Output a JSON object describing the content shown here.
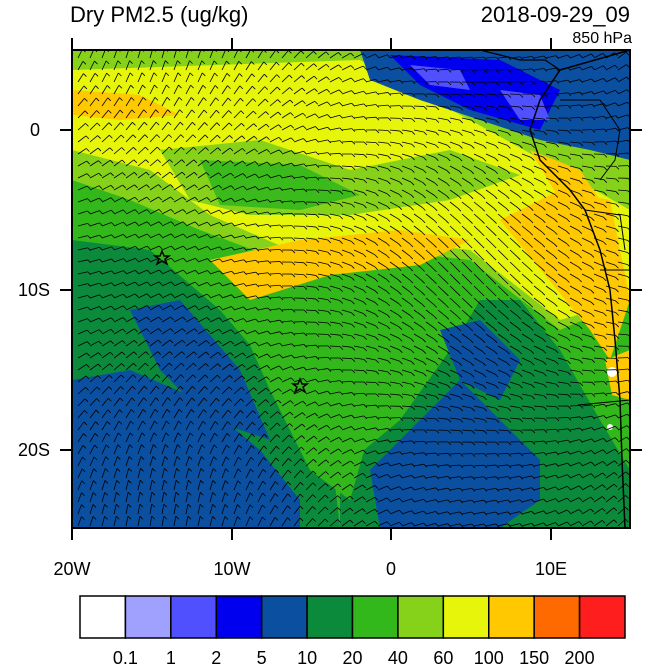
{
  "header": {
    "title": "Dry PM2.5 (ug/kg)",
    "datetime": "2018-09-29_09",
    "level": "850 hPa"
  },
  "axes": {
    "lon_labels": [
      "20W",
      "10W",
      "0",
      "10E"
    ],
    "lat_labels": [
      "0",
      "10S",
      "20S"
    ]
  },
  "colorbar": {
    "labels": [
      "0.1",
      "1",
      "2",
      "5",
      "10",
      "20",
      "40",
      "60",
      "100",
      "150",
      "200"
    ],
    "colors": [
      "#ffffff",
      "#a0a0ff",
      "#5050ff",
      "#0000ee",
      "#0a4fa0",
      "#0b8a3c",
      "#33b81c",
      "#86d21a",
      "#e6f50a",
      "#ffc800",
      "#ff6a00",
      "#ff1e1e"
    ]
  },
  "markers": [
    "star-site-1",
    "star-site-2"
  ]
}
